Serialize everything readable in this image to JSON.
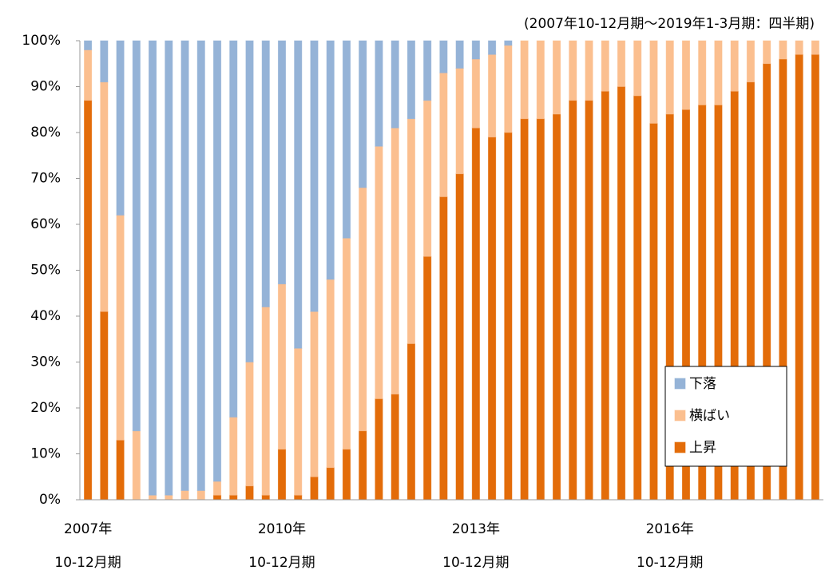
{
  "chart_data": {
    "type": "stacked_bar",
    "subtitle": "(2007年10-12月期～2019年1-3月期：四半期)",
    "categories": [
      "2007年",
      null,
      null,
      null,
      null,
      null,
      null,
      null,
      null,
      null,
      null,
      null,
      "2010年",
      null,
      null,
      null,
      null,
      null,
      null,
      null,
      null,
      null,
      null,
      null,
      "2013年",
      null,
      null,
      null,
      null,
      null,
      null,
      null,
      null,
      null,
      null,
      null,
      "2016年",
      null,
      null,
      null,
      null,
      null,
      null,
      null,
      null,
      null
    ],
    "category_periods": [
      "10-12月期",
      null,
      null,
      null,
      null,
      null,
      null,
      null,
      null,
      null,
      null,
      null,
      "10-12月期",
      null,
      null,
      null,
      null,
      null,
      null,
      null,
      null,
      null,
      null,
      null,
      "10-12月期",
      null,
      null,
      null,
      null,
      null,
      null,
      null,
      null,
      null,
      null,
      null,
      "10-12月期",
      null,
      null,
      null,
      null,
      null,
      null,
      null,
      null,
      null
    ],
    "series": [
      {
        "name": "上昇",
        "color": "#e36c09",
        "values": [
          87,
          41,
          13,
          0,
          0,
          0,
          0,
          0,
          1,
          1,
          3,
          1,
          11,
          1,
          5,
          7,
          11,
          15,
          22,
          23,
          34,
          53,
          66,
          71,
          81,
          79,
          80,
          83,
          83,
          84,
          87,
          87,
          89,
          90,
          88,
          82,
          84,
          85,
          86,
          86,
          89,
          91,
          95,
          96,
          97,
          97
        ]
      },
      {
        "name": "横ばい",
        "color": "#fbbf8f",
        "values": [
          11,
          50,
          49,
          15,
          1,
          1,
          2,
          2,
          3,
          17,
          27,
          41,
          36,
          32,
          36,
          41,
          46,
          53,
          55,
          58,
          49,
          34,
          27,
          23,
          15,
          18,
          19,
          17,
          17,
          16,
          13,
          13,
          11,
          10,
          12,
          18,
          16,
          15,
          14,
          14,
          11,
          9,
          5,
          4,
          3,
          3
        ]
      },
      {
        "name": "下落",
        "color": "#95b3d7",
        "values": [
          2,
          9,
          38,
          85,
          99,
          99,
          98,
          98,
          96,
          82,
          70,
          58,
          53,
          67,
          59,
          52,
          43,
          32,
          23,
          19,
          17,
          13,
          7,
          6,
          4,
          3,
          1,
          0,
          0,
          0,
          0,
          0,
          0,
          0,
          0,
          0,
          0,
          0,
          0,
          0,
          0,
          0,
          0,
          0,
          0,
          0
        ]
      }
    ],
    "ylim": [
      0,
      100
    ],
    "yticks": [
      {
        "value": 0,
        "label": "0%"
      },
      {
        "value": 10,
        "label": "10%"
      },
      {
        "value": 20,
        "label": "20%"
      },
      {
        "value": 30,
        "label": "30%"
      },
      {
        "value": 40,
        "label": "40%"
      },
      {
        "value": 50,
        "label": "50%"
      },
      {
        "value": 60,
        "label": "60%"
      },
      {
        "value": 70,
        "label": "70%"
      },
      {
        "value": 80,
        "label": "80%"
      },
      {
        "value": 90,
        "label": "90%"
      },
      {
        "value": 100,
        "label": "100%"
      }
    ],
    "grid": false,
    "legend": "lower right"
  }
}
